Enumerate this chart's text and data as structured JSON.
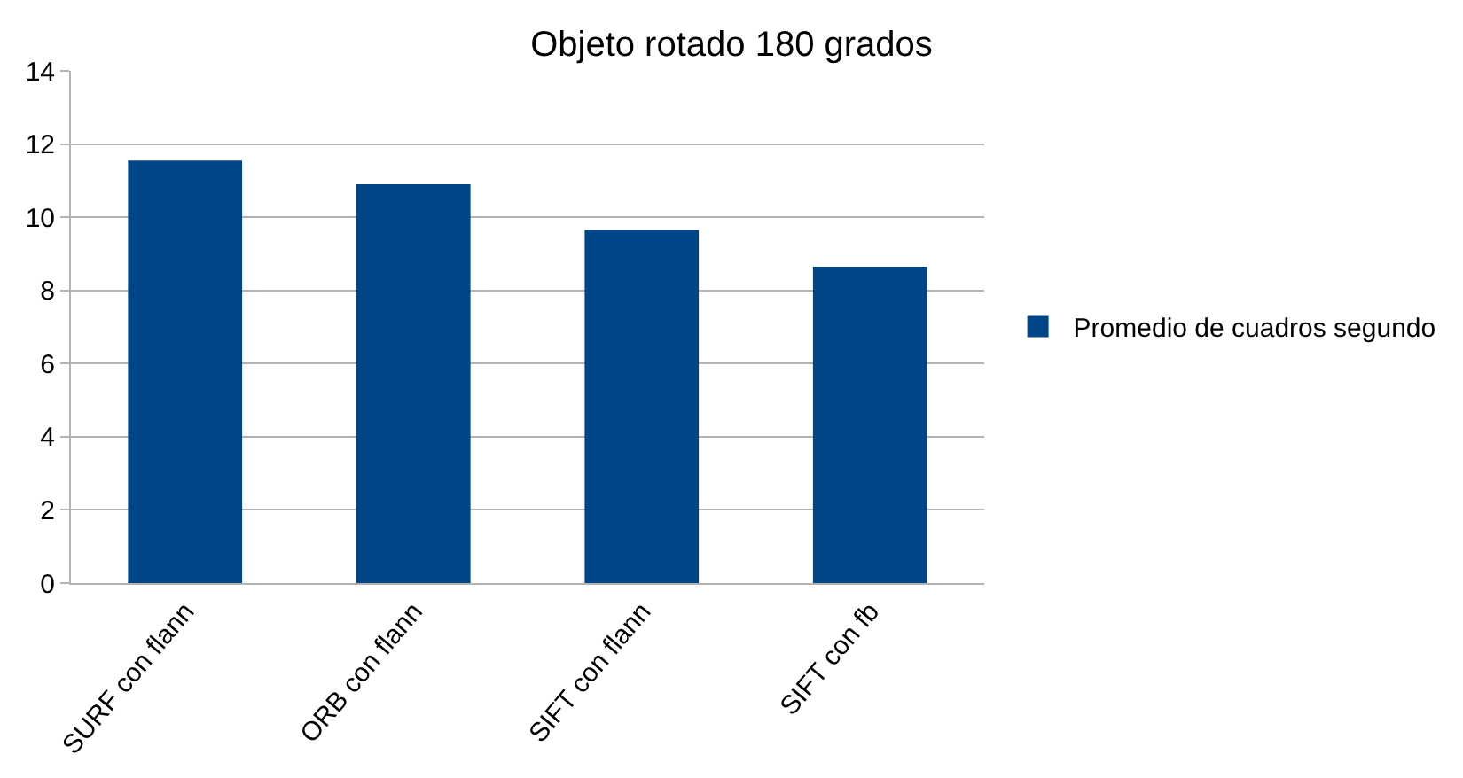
{
  "chart_data": {
    "type": "bar",
    "title": "Objeto rotado 180 grados",
    "categories": [
      "SURF con flann",
      "ORB con flann",
      "SIFT con flann",
      "SIFT con fb"
    ],
    "series": [
      {
        "name": "Promedio de cuadros segundo",
        "color": "#004586",
        "values": [
          11.55,
          10.9,
          9.65,
          8.65
        ]
      }
    ],
    "ylim": [
      0,
      14
    ],
    "yticks": [
      0,
      2,
      4,
      6,
      8,
      10,
      12,
      14
    ],
    "grid": "y",
    "legend": "right"
  }
}
